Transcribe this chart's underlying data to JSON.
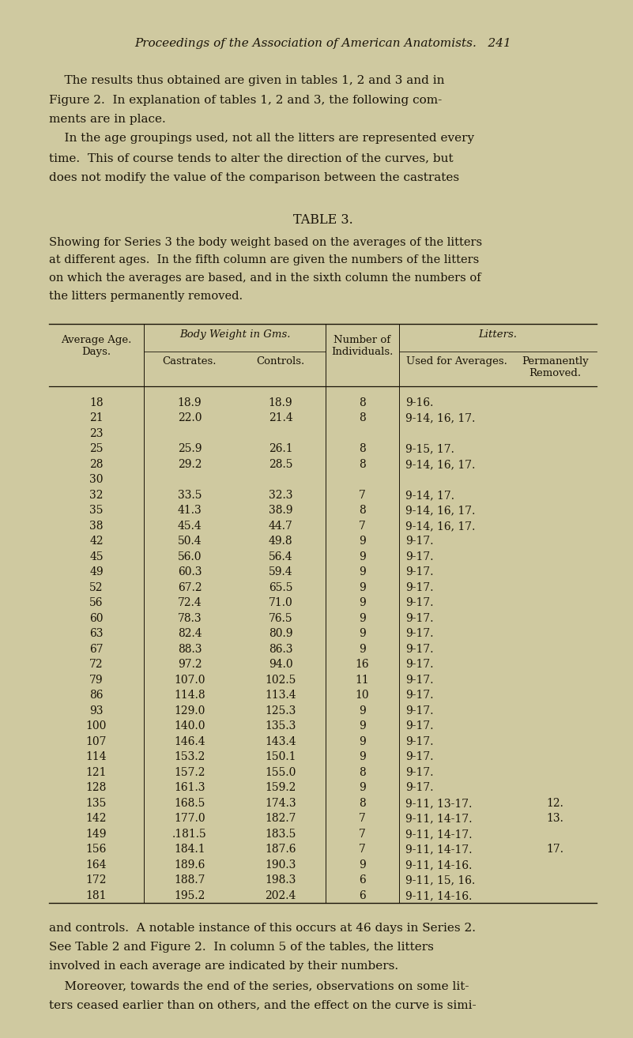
{
  "bg_color": "#cfc9a0",
  "text_color": "#1a1408",
  "page_header": "Proceedings of the Association of American Anatomists.   241",
  "para1_lines": [
    "    The results thus obtained are given in tables 1, 2 and 3 and in",
    "Figure 2.  In explanation of tables 1, 2 and 3, the following com-",
    "ments are in place.",
    "    In the age groupings used, not all the litters are represented every",
    "time.  This of course tends to alter the direction of the curves, but",
    "does not modify the value of the comparison between the castrates"
  ],
  "table_title": "TABLE 3.",
  "caption_lines": [
    "Showing for Series 3 the body weight based on the averages of the litters",
    "at different ages.  In the fifth column are given the numbers of the litters",
    "on which the averages are based, and in the sixth column the numbers of",
    "the litters permanently removed."
  ],
  "table_data": [
    [
      "18",
      "18.9",
      "18.9",
      "8",
      "9-16.",
      ""
    ],
    [
      "21",
      "22.0",
      "21.4",
      "8",
      "9-14, 16, 17.",
      ""
    ],
    [
      "23",
      "",
      "",
      "",
      "",
      ""
    ],
    [
      "25",
      "25.9",
      "26.1",
      "8",
      "9-15, 17.",
      ""
    ],
    [
      "28",
      "29.2",
      "28.5",
      "8",
      "9-14, 16, 17.",
      ""
    ],
    [
      "30",
      "",
      "",
      "",
      "",
      ""
    ],
    [
      "32",
      "33.5",
      "32.3",
      "7",
      "9-14, 17.",
      ""
    ],
    [
      "35",
      "41.3",
      "38.9",
      "8",
      "9-14, 16, 17.",
      ""
    ],
    [
      "38",
      "45.4",
      "44.7",
      "7",
      "9-14, 16, 17.",
      ""
    ],
    [
      "42",
      "50.4",
      "49.8",
      "9",
      "9-17.",
      ""
    ],
    [
      "45",
      "56.0",
      "56.4",
      "9",
      "9-17.",
      ""
    ],
    [
      "49",
      "60.3",
      "59.4",
      "9",
      "9-17.",
      ""
    ],
    [
      "52",
      "67.2",
      "65.5",
      "9",
      "9-17.",
      ""
    ],
    [
      "56",
      "72.4",
      "71.0",
      "9",
      "9-17.",
      ""
    ],
    [
      "60",
      "78.3",
      "76.5",
      "9",
      "9-17.",
      ""
    ],
    [
      "63",
      "82.4",
      "80.9",
      "9",
      "9-17.",
      ""
    ],
    [
      "67",
      "88.3",
      "86.3",
      "9",
      "9-17.",
      ""
    ],
    [
      "72",
      "97.2",
      "94.0",
      "16",
      "9-17.",
      ""
    ],
    [
      "79",
      "107.0",
      "102.5",
      "11",
      "9-17.",
      ""
    ],
    [
      "86",
      "114.8",
      "113.4",
      "10",
      "9-17.",
      ""
    ],
    [
      "93",
      "129.0",
      "125.3",
      "9",
      "9-17.",
      ""
    ],
    [
      "100",
      "140.0",
      "135.3",
      "9",
      "9-17.",
      ""
    ],
    [
      "107",
      "146.4",
      "143.4",
      "9",
      "9-17.",
      ""
    ],
    [
      "114",
      "153.2",
      "150.1",
      "9",
      "9-17.",
      ""
    ],
    [
      "121",
      "157.2",
      "155.0",
      "8",
      "9-17.",
      ""
    ],
    [
      "128",
      "161.3",
      "159.2",
      "9",
      "9-17.",
      ""
    ],
    [
      "135",
      "168.5",
      "174.3",
      "8",
      "9-11, 13-17.",
      "12."
    ],
    [
      "142",
      "177.0",
      "182.7",
      "7",
      "9-11, 14-17.",
      "13."
    ],
    [
      "149",
      ".181.5",
      "183.5",
      "7",
      "9-11, 14-17.",
      ""
    ],
    [
      "156",
      "184.1",
      "187.6",
      "7",
      "9-11, 14-17.",
      "17."
    ],
    [
      "164",
      "189.6",
      "190.3",
      "9",
      "9-11, 14-16.",
      ""
    ],
    [
      "172",
      "188.7",
      "198.3",
      "6",
      "9-11, 15, 16.",
      ""
    ],
    [
      "181",
      "195.2",
      "202.4",
      "6",
      "9-11, 14-16.",
      ""
    ]
  ],
  "para2_lines": [
    "and controls.  A notable instance of this occurs at 46 days in Series 2.",
    "See Table 2 and Figure 2.  In column 5 of the tables, the litters",
    "involved in each average are indicated by their numbers.",
    "    Moreover, towards the end of the series, observations on some lit-",
    "ters ceased earlier than on others, and the effect on the curve is simi-"
  ]
}
